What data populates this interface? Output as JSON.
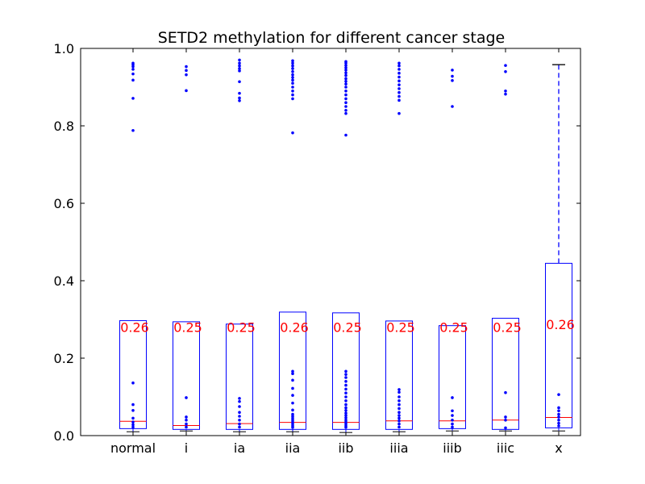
{
  "chart_data": {
    "type": "box",
    "title": "SETD2 methylation for different cancer stage",
    "xlabel": "",
    "ylabel": "",
    "ylim": [
      0.0,
      1.0
    ],
    "yticks": [
      "0.0",
      "0.2",
      "0.4",
      "0.6",
      "0.8",
      "1.0"
    ],
    "grid": false,
    "categories": [
      "normal",
      "i",
      "ia",
      "iia",
      "iib",
      "iiia",
      "iiib",
      "iiic",
      "x"
    ],
    "boxes": [
      {
        "category": "normal",
        "whisker_low": 0.01,
        "q1": 0.018,
        "median": 0.037,
        "q3": 0.297,
        "whisker_high": null,
        "label": "0.26",
        "outliers": [
          0.136,
          0.08,
          0.065,
          0.045,
          0.035,
          0.028,
          0.022,
          0.788,
          0.871,
          0.918,
          0.934,
          0.946,
          0.953,
          0.958,
          0.962
        ]
      },
      {
        "category": "i",
        "whisker_low": 0.012,
        "q1": 0.016,
        "median": 0.026,
        "q3": 0.294,
        "whisker_high": null,
        "label": "0.25",
        "outliers": [
          0.098,
          0.048,
          0.04,
          0.03,
          0.022,
          0.891,
          0.932,
          0.943,
          0.953
        ]
      },
      {
        "category": "ia",
        "whisker_low": 0.01,
        "q1": 0.016,
        "median": 0.031,
        "q3": 0.288,
        "whisker_high": null,
        "label": "0.25",
        "outliers": [
          0.096,
          0.088,
          0.075,
          0.06,
          0.05,
          0.04,
          0.03,
          0.022,
          0.865,
          0.872,
          0.884,
          0.914,
          0.942,
          0.948,
          0.955,
          0.962,
          0.97
        ]
      },
      {
        "category": "iia",
        "whisker_low": 0.01,
        "q1": 0.016,
        "median": 0.034,
        "q3": 0.319,
        "whisker_high": null,
        "label": "0.26",
        "outliers": [
          0.166,
          0.16,
          0.143,
          0.122,
          0.104,
          0.084,
          0.066,
          0.055,
          0.05,
          0.045,
          0.04,
          0.035,
          0.03,
          0.025,
          0.021,
          0.782,
          0.87,
          0.88,
          0.89,
          0.9,
          0.91,
          0.918,
          0.925,
          0.932,
          0.94,
          0.948,
          0.955,
          0.962,
          0.968
        ]
      },
      {
        "category": "iib",
        "whisker_low": 0.008,
        "q1": 0.016,
        "median": 0.034,
        "q3": 0.317,
        "whisker_high": null,
        "label": "0.25",
        "outliers": [
          0.166,
          0.158,
          0.15,
          0.14,
          0.13,
          0.12,
          0.11,
          0.1,
          0.09,
          0.08,
          0.072,
          0.065,
          0.058,
          0.052,
          0.046,
          0.04,
          0.035,
          0.03,
          0.025,
          0.021,
          0.776,
          0.832,
          0.84,
          0.85,
          0.86,
          0.87,
          0.88,
          0.89,
          0.9,
          0.908,
          0.915,
          0.922,
          0.93,
          0.937,
          0.944,
          0.95,
          0.956,
          0.962,
          0.966
        ]
      },
      {
        "category": "iiia",
        "whisker_low": 0.01,
        "q1": 0.016,
        "median": 0.038,
        "q3": 0.296,
        "whisker_high": null,
        "label": "0.25",
        "outliers": [
          0.119,
          0.112,
          0.1,
          0.09,
          0.08,
          0.07,
          0.06,
          0.052,
          0.045,
          0.038,
          0.03,
          0.022,
          0.832,
          0.866,
          0.876,
          0.886,
          0.896,
          0.906,
          0.916,
          0.926,
          0.936,
          0.946,
          0.955,
          0.962
        ]
      },
      {
        "category": "iiib",
        "whisker_low": 0.012,
        "q1": 0.018,
        "median": 0.038,
        "q3": 0.284,
        "whisker_high": null,
        "label": "0.25",
        "outliers": [
          0.098,
          0.064,
          0.052,
          0.04,
          0.03,
          0.022,
          0.85,
          0.917,
          0.928,
          0.944
        ]
      },
      {
        "category": "iiic",
        "whisker_low": 0.012,
        "q1": 0.016,
        "median": 0.04,
        "q3": 0.303,
        "whisker_high": null,
        "label": "0.25",
        "outliers": [
          0.111,
          0.048,
          0.04,
          0.02,
          0.882,
          0.89,
          0.94,
          0.956
        ]
      },
      {
        "category": "x",
        "whisker_low": 0.012,
        "q1": 0.02,
        "median": 0.047,
        "q3": 0.445,
        "whisker_high": 0.958,
        "label": "0.26",
        "outliers": [
          0.106,
          0.072,
          0.064,
          0.055,
          0.048,
          0.04,
          0.032,
          0.025
        ]
      }
    ],
    "colors": {
      "box": "#0000ff",
      "median": "#ff0000",
      "outlier": "#0000ff",
      "label": "#ff0000",
      "whisker_cap": "#000000"
    }
  }
}
